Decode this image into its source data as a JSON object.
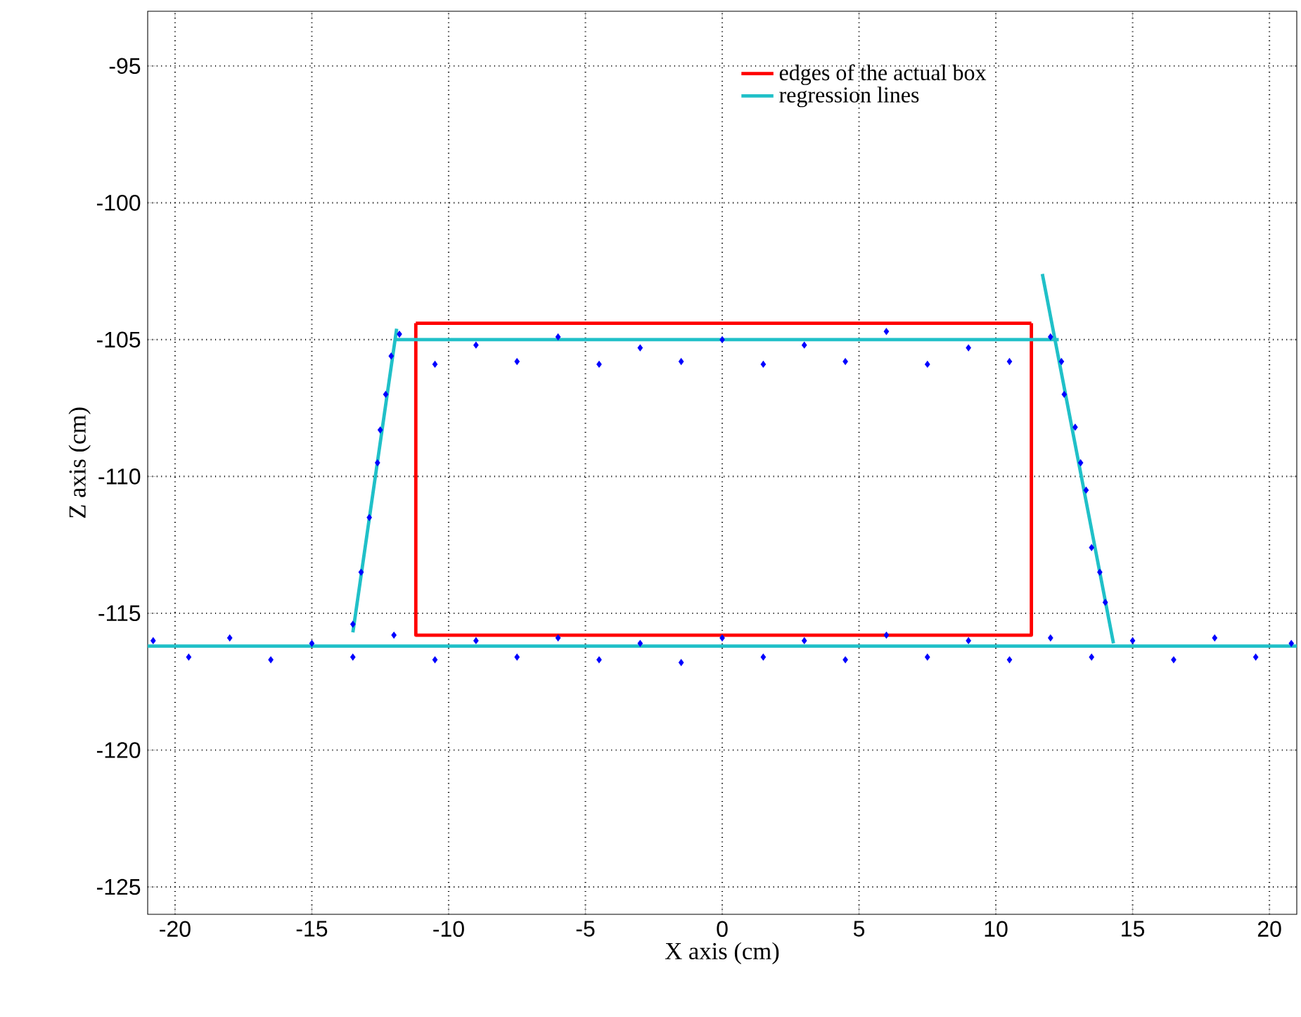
{
  "chart_data": {
    "type": "scatter",
    "xlabel": "X axis (cm)",
    "ylabel": "Z axis (cm)",
    "xlim": [
      -21,
      21
    ],
    "ylim": [
      -126,
      -93
    ],
    "xticks": [
      -20,
      -15,
      -10,
      -5,
      0,
      5,
      10,
      15,
      20
    ],
    "yticks": [
      -125,
      -120,
      -115,
      -110,
      -105,
      -100,
      -95
    ],
    "grid": true,
    "legend": "top right",
    "series": [
      {
        "marker": "diamond",
        "color": "#0000ff",
        "x": [
          -20.8,
          -19.5,
          -18,
          -16.5,
          -15,
          -13.5,
          -12,
          -10.5,
          -9,
          -7.5,
          -6,
          -4.5,
          -3,
          -1.5,
          0,
          1.5,
          3,
          4.5,
          6,
          7.5,
          9,
          10.5,
          12,
          13.5,
          15,
          16.5,
          18,
          19.5,
          20.8,
          -11.8,
          -10.5,
          -9,
          -7.5,
          -6,
          -4.5,
          -3,
          -1.5,
          0,
          1.5,
          3,
          4.5,
          6,
          7.5,
          9,
          10.5,
          12,
          -13.5,
          -13.2,
          -12.9,
          -12.6,
          -12.5,
          -12.3,
          -12.1,
          12.4,
          12.5,
          12.9,
          13.1,
          13.3,
          13.5,
          13.8,
          14.0
        ],
        "values": [
          -116.0,
          -116.6,
          -115.9,
          -116.7,
          -116.1,
          -116.6,
          -115.8,
          -116.7,
          -116.0,
          -116.6,
          -115.9,
          -116.7,
          -116.1,
          -116.8,
          -115.9,
          -116.6,
          -116.0,
          -116.7,
          -115.8,
          -116.6,
          -116.0,
          -116.7,
          -115.9,
          -116.6,
          -116.0,
          -116.7,
          -115.9,
          -116.6,
          -116.1,
          -104.8,
          -105.9,
          -105.2,
          -105.8,
          -104.9,
          -105.9,
          -105.3,
          -105.8,
          -105.0,
          -105.9,
          -105.2,
          -105.8,
          -104.7,
          -105.9,
          -105.3,
          -105.8,
          -104.9,
          -115.4,
          -113.5,
          -111.5,
          -109.5,
          -108.3,
          -107.0,
          -105.6,
          -105.8,
          -107.0,
          -108.2,
          -109.5,
          -110.5,
          -112.6,
          -113.5,
          -114.6
        ]
      },
      {
        "type": "line",
        "name": "edges of the actual box",
        "color": "#ff0000",
        "x": [
          -11.2,
          -11.2,
          11.3,
          11.3
        ],
        "values": [
          -104.4,
          -115.8,
          -115.8,
          -104.4
        ]
      },
      {
        "type": "line",
        "color": "#ff0000",
        "x": [
          -11.2,
          11.3
        ],
        "values": [
          -104.4,
          -104.4
        ]
      },
      {
        "type": "line",
        "name": "regression lines",
        "color": "#20c0c8",
        "x": [
          -13.5,
          -11.9,
          null,
          -11.9,
          12.3,
          null,
          11.7,
          14.3,
          null,
          -21,
          21
        ],
        "values": [
          -115.7,
          -104.6,
          null,
          -105,
          -105,
          null,
          -102.6,
          -116.1,
          null,
          -116.2,
          -116.2
        ]
      }
    ]
  }
}
